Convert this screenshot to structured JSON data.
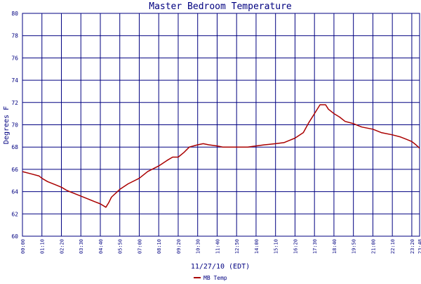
{
  "chart_data": {
    "type": "line",
    "title": "Master Bedroom Temperature",
    "xlabel": "11/27/10 (EDT)",
    "ylabel": "Degrees F",
    "ylim": [
      60,
      80
    ],
    "yticks": [
      60,
      62,
      64,
      66,
      68,
      70,
      72,
      74,
      76,
      78,
      80
    ],
    "xlim": [
      "00:00",
      "23:48"
    ],
    "xticks": [
      "00:00",
      "01:10",
      "02:20",
      "03:30",
      "04:40",
      "05:50",
      "07:00",
      "08:10",
      "09:20",
      "10:30",
      "11:40",
      "12:50",
      "14:00",
      "15:10",
      "16:20",
      "17:30",
      "18:40",
      "19:50",
      "21:00",
      "22:10",
      "23:20",
      "23:48"
    ],
    "grid": true,
    "legend_position": "bottom-left",
    "colors": {
      "background": "#ffffff",
      "plot_background": "#ffffff",
      "grid": "#000080",
      "title": "#000080",
      "axis_text": "#000080",
      "line": "#aa0000"
    },
    "series": [
      {
        "name": "MB Temp",
        "x": [
          "00:00",
          "00:30",
          "01:00",
          "01:10",
          "01:30",
          "02:00",
          "02:20",
          "02:40",
          "03:00",
          "03:30",
          "04:00",
          "04:20",
          "04:40",
          "05:00",
          "05:10",
          "05:20",
          "05:50",
          "06:20",
          "07:00",
          "07:30",
          "08:10",
          "08:40",
          "09:00",
          "09:20",
          "09:40",
          "10:00",
          "10:30",
          "10:50",
          "11:10",
          "11:40",
          "12:00",
          "12:30",
          "12:50",
          "13:30",
          "14:00",
          "14:30",
          "15:10",
          "15:40",
          "16:00",
          "16:20",
          "16:50",
          "17:10",
          "17:30",
          "17:50",
          "18:10",
          "18:20",
          "18:40",
          "19:00",
          "19:20",
          "19:50",
          "20:20",
          "21:00",
          "21:30",
          "22:10",
          "22:40",
          "23:00",
          "23:20",
          "23:35",
          "23:48"
        ],
        "values": [
          65.8,
          65.6,
          65.4,
          65.2,
          64.9,
          64.6,
          64.4,
          64.1,
          63.9,
          63.6,
          63.3,
          63.1,
          62.9,
          62.6,
          63.0,
          63.5,
          64.2,
          64.7,
          65.2,
          65.8,
          66.3,
          66.8,
          67.1,
          67.1,
          67.5,
          68.0,
          68.2,
          68.3,
          68.2,
          68.1,
          68.0,
          68.0,
          68.0,
          68.0,
          68.1,
          68.2,
          68.3,
          68.4,
          68.6,
          68.8,
          69.3,
          70.2,
          71.0,
          71.8,
          71.8,
          71.4,
          71.0,
          70.7,
          70.3,
          70.1,
          69.8,
          69.6,
          69.3,
          69.1,
          68.9,
          68.7,
          68.5,
          68.2,
          67.9
        ]
      }
    ]
  }
}
